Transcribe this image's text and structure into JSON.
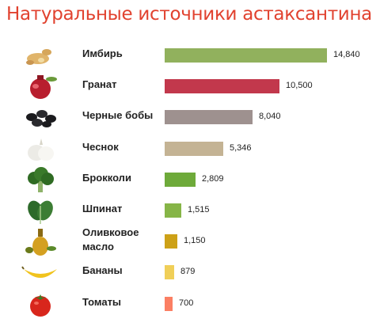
{
  "chart_data": {
    "type": "bar",
    "orientation": "horizontal",
    "title": "Натуральные источники астаксантина",
    "categories": [
      "Имбирь",
      "Гранат",
      "Черные бобы",
      "Чеснок",
      "Брокколи",
      "Шпинат",
      "Оливковое масло",
      "Бананы",
      "Томаты"
    ],
    "category_lines": [
      [
        "Имбирь"
      ],
      [
        "Гранат"
      ],
      [
        "Черные бобы"
      ],
      [
        "Чеснок"
      ],
      [
        "Брокколи"
      ],
      [
        "Шпинат"
      ],
      [
        "Оливковое",
        "масло"
      ],
      [
        "Бананы"
      ],
      [
        "Томаты"
      ]
    ],
    "values": [
      14840,
      10500,
      8040,
      5346,
      2809,
      1515,
      1150,
      879,
      700
    ],
    "value_labels": [
      "14,840",
      "10,500",
      "8,040",
      "5,346",
      "2,809",
      "1,515",
      "1,150",
      "879",
      "700"
    ],
    "bar_colors": [
      "#91b15d",
      "#c2384c",
      "#9e918f",
      "#c4b394",
      "#6eaa3a",
      "#86b547",
      "#cda117",
      "#f0cf58",
      "#fb7f63"
    ],
    "icons": [
      "ginger-icon",
      "pomegranate-icon",
      "black-beans-icon",
      "garlic-icon",
      "broccoli-icon",
      "spinach-icon",
      "olive-oil-icon",
      "banana-icon",
      "tomato-icon"
    ],
    "title_color": "#e1422f",
    "xlim": [
      0,
      14840
    ],
    "grid": false,
    "legend": "none"
  }
}
